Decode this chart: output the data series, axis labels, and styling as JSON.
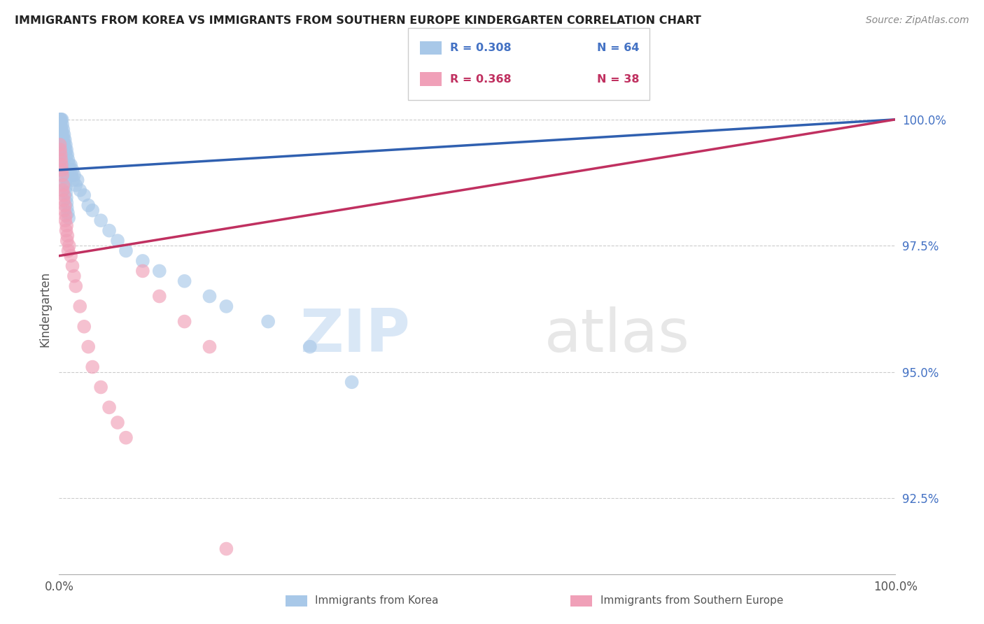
{
  "title": "IMMIGRANTS FROM KOREA VS IMMIGRANTS FROM SOUTHERN EUROPE KINDERGARTEN CORRELATION CHART",
  "source": "Source: ZipAtlas.com",
  "ylabel": "Kindergarten",
  "ylim": [
    91.0,
    101.5
  ],
  "xlim": [
    0.0,
    100.0
  ],
  "ytick_vals": [
    92.5,
    95.0,
    97.5,
    100.0
  ],
  "ytick_labels": [
    "92.5%",
    "95.0%",
    "97.5%",
    "100.0%"
  ],
  "xtick_vals": [
    0,
    100
  ],
  "xtick_labels": [
    "0.0%",
    "100.0%"
  ],
  "korea_color": "#A8C8E8",
  "south_europe_color": "#F0A0B8",
  "korea_line_color": "#3060B0",
  "south_europe_line_color": "#C03060",
  "background_color": "#FFFFFF",
  "legend_korea_r": "R = 0.308",
  "legend_korea_n": "N = 64",
  "legend_se_r": "R = 0.368",
  "legend_se_n": "N = 38",
  "korea_x": [
    0.15,
    0.2,
    0.25,
    0.3,
    0.35,
    0.4,
    0.45,
    0.5,
    0.55,
    0.6,
    0.65,
    0.7,
    0.75,
    0.8,
    0.85,
    0.9,
    1.0,
    1.1,
    1.2,
    1.3,
    1.4,
    1.5,
    1.6,
    1.7,
    1.8,
    2.0,
    2.2,
    2.5,
    3.0,
    3.5,
    4.0,
    5.0,
    6.0,
    7.0,
    8.0,
    10.0,
    12.0,
    15.0,
    18.0,
    20.0,
    0.1,
    0.12,
    0.18,
    0.22,
    0.28,
    0.32,
    0.38,
    0.42,
    0.48,
    0.52,
    0.58,
    0.62,
    0.68,
    0.72,
    0.78,
    0.82,
    0.88,
    0.92,
    0.95,
    1.05,
    1.15,
    25.0,
    30.0,
    35.0
  ],
  "korea_y": [
    100.0,
    99.9,
    100.0,
    99.8,
    100.0,
    99.9,
    99.7,
    99.8,
    99.6,
    99.7,
    99.5,
    99.6,
    99.4,
    99.5,
    99.3,
    99.4,
    99.3,
    99.2,
    99.1,
    99.0,
    99.1,
    98.9,
    99.0,
    98.8,
    98.9,
    98.7,
    98.8,
    98.6,
    98.5,
    98.3,
    98.2,
    98.0,
    97.8,
    97.6,
    97.4,
    97.2,
    97.0,
    96.8,
    96.5,
    96.3,
    100.0,
    99.95,
    99.85,
    99.75,
    99.65,
    99.55,
    99.45,
    99.35,
    99.25,
    99.15,
    99.05,
    98.95,
    98.85,
    98.75,
    98.65,
    98.55,
    98.45,
    98.35,
    98.25,
    98.15,
    98.05,
    96.0,
    95.5,
    94.8
  ],
  "south_europe_x": [
    0.1,
    0.15,
    0.2,
    0.25,
    0.3,
    0.35,
    0.4,
    0.5,
    0.6,
    0.7,
    0.8,
    0.9,
    1.0,
    1.2,
    1.4,
    1.6,
    1.8,
    2.0,
    2.5,
    3.0,
    3.5,
    4.0,
    5.0,
    6.0,
    7.0,
    8.0,
    10.0,
    12.0,
    15.0,
    18.0,
    0.45,
    0.55,
    0.65,
    0.75,
    0.85,
    0.95,
    1.1,
    20.0
  ],
  "south_europe_y": [
    99.5,
    99.4,
    99.3,
    99.2,
    99.1,
    99.0,
    98.9,
    98.7,
    98.5,
    98.3,
    98.1,
    97.9,
    97.7,
    97.5,
    97.3,
    97.1,
    96.9,
    96.7,
    96.3,
    95.9,
    95.5,
    95.1,
    94.7,
    94.3,
    94.0,
    93.7,
    97.0,
    96.5,
    96.0,
    95.5,
    98.6,
    98.4,
    98.2,
    98.0,
    97.8,
    97.6,
    97.4,
    91.5
  ]
}
